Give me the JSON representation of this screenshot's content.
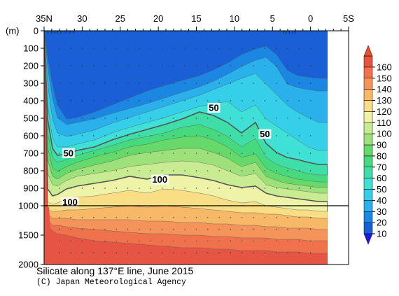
{
  "chart_data": {
    "type": "contour-section",
    "title": "Silicate along 137°E line, June 2015",
    "credit": "(C) Japan Meteorological Agency",
    "x_axis": {
      "direction": "latitude, north to south",
      "ticks": [
        "35N",
        "30",
        "25",
        "20",
        "15",
        "10",
        "5",
        "0",
        "5S"
      ],
      "range": [
        35,
        -5
      ]
    },
    "y_axis": {
      "label": "(m)",
      "ticks": [
        "0",
        "100",
        "200",
        "300",
        "400",
        "500",
        "600",
        "700",
        "800",
        "900",
        "1000",
        "1500",
        "2000"
      ],
      "scale_break_at": 1000,
      "range": [
        0,
        2000
      ]
    },
    "colorbar": {
      "labels": [
        "10",
        "20",
        "30",
        "40",
        "50",
        "60",
        "70",
        "80",
        "90",
        "100",
        "110",
        "120",
        "130",
        "140",
        "150",
        "160"
      ],
      "colors": [
        "#1a5fd6",
        "#1c86e3",
        "#2ab1ec",
        "#35cfe9",
        "#3fe0d6",
        "#3fdda8",
        "#46d97d",
        "#67d96a",
        "#9ee17b",
        "#c9ec93",
        "#eef3a8",
        "#f9de86",
        "#f7b868",
        "#f5945a",
        "#f0724d",
        "#e65544"
      ]
    },
    "contour_labels": [
      {
        "text": "50",
        "lat": 31.8,
        "depth": 700
      },
      {
        "text": "100",
        "lat": 19.8,
        "depth": 850
      },
      {
        "text": "100",
        "lat": 31.6,
        "depth": 980
      },
      {
        "text": "50",
        "lat": 12.7,
        "depth": 440
      },
      {
        "text": "50",
        "lat": 6.0,
        "depth": 590
      }
    ]
  }
}
